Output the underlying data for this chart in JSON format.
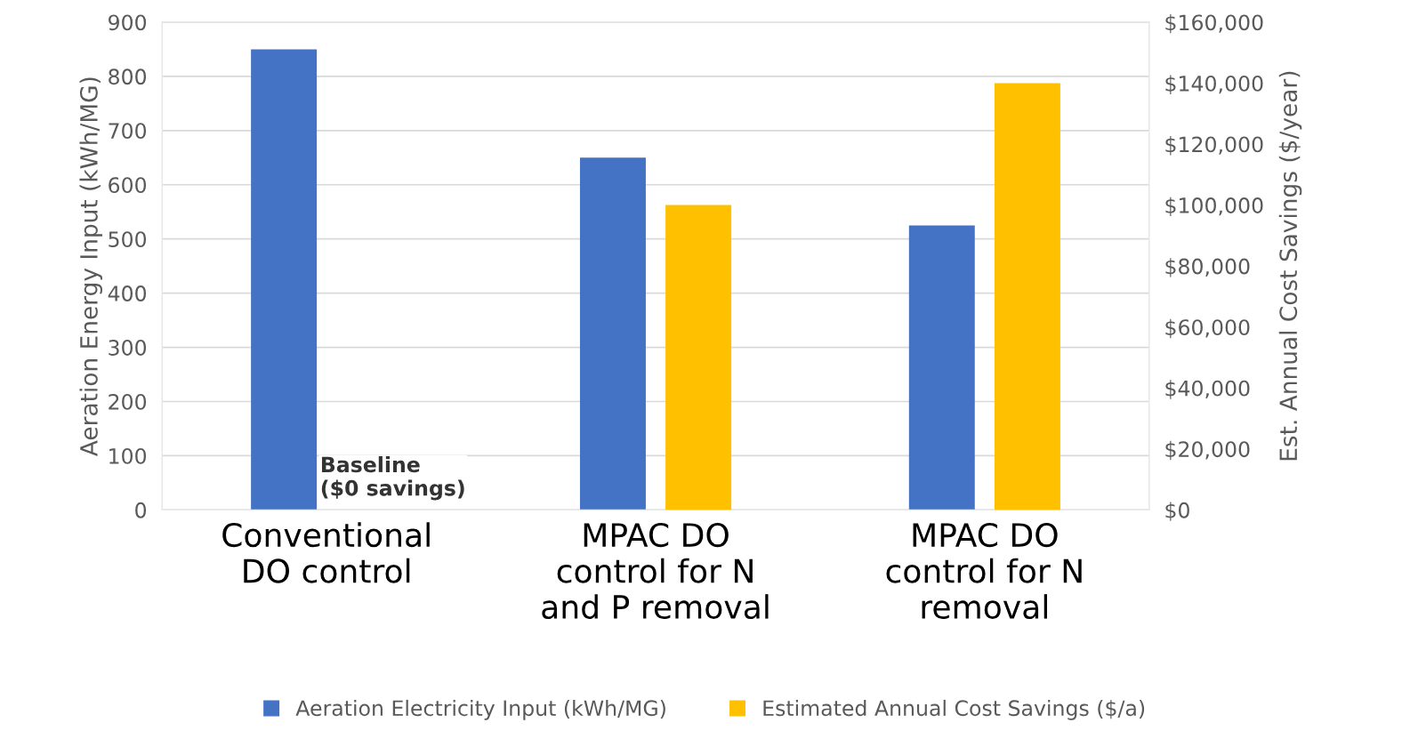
{
  "chart_data": {
    "type": "bar",
    "categories": [
      "Conventional\nDO control",
      "MPAC DO\ncontrol for N\nand P removal",
      "MPAC DO\ncontrol for N\nremoval"
    ],
    "series": [
      {
        "name": "Aeration Electricity Input (kWh/MG)",
        "color": "#4472c4",
        "values": [
          850,
          650,
          525
        ]
      },
      {
        "name": "Estimated Annual Cost Savings ($/a)",
        "color": "#ffc000",
        "values": [
          0,
          100000,
          140000
        ],
        "axis": "y2"
      }
    ],
    "ylabel": "Aeration Energy Input (kWh/MG)",
    "y2label": "Est. Annual Cost Savings ($/year)",
    "ylim": [
      0,
      900
    ],
    "yticks": [
      0,
      100,
      200,
      300,
      400,
      500,
      600,
      700,
      800,
      900
    ],
    "y2lim": [
      0,
      160000
    ],
    "y2ticks": [
      {
        "value": 0,
        "label": "$0"
      },
      {
        "value": 20000,
        "label": "$20,000"
      },
      {
        "value": 40000,
        "label": "$40,000"
      },
      {
        "value": 60000,
        "label": "$60,000"
      },
      {
        "value": 80000,
        "label": "$80,000"
      },
      {
        "value": 100000,
        "label": "$100,000"
      },
      {
        "value": 120000,
        "label": "$120,000"
      },
      {
        "value": 140000,
        "label": "$140,000"
      },
      {
        "value": 160000,
        "label": "$160,000"
      }
    ],
    "annotations": [
      "Baseline\n($0 savings)"
    ],
    "grid": "y",
    "legend": "bottom"
  }
}
